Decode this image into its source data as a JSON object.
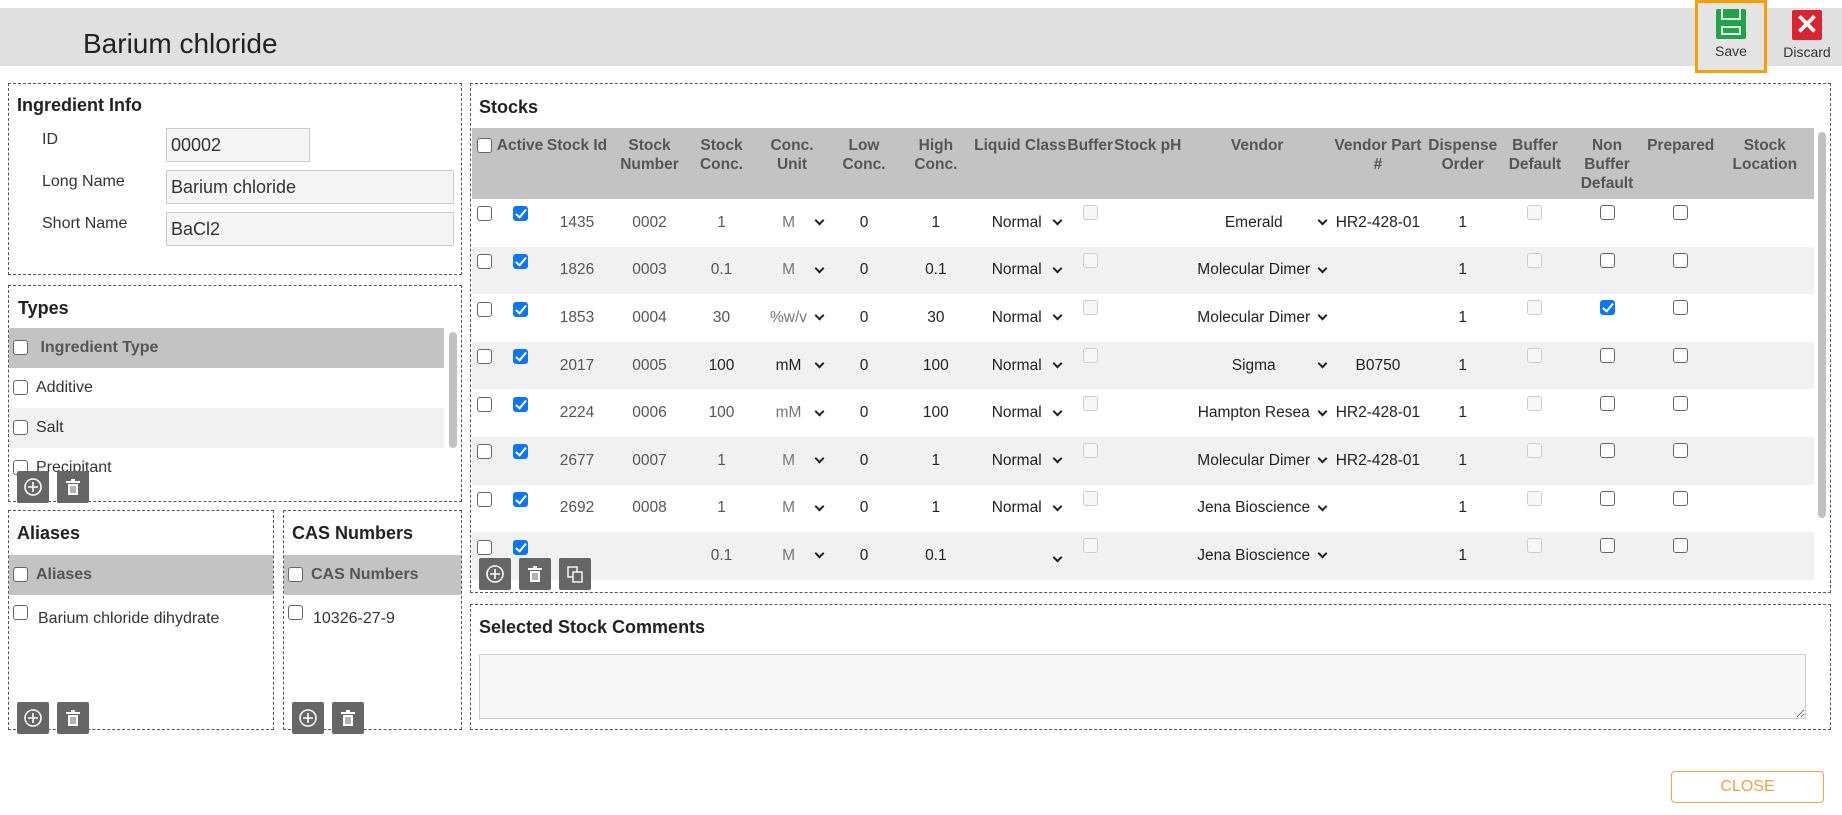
{
  "header": {
    "title": "Barium chloride",
    "save_label": "Save",
    "discard_label": "Discard"
  },
  "ingredient_info": {
    "title": "Ingredient Info",
    "id_label": "ID",
    "id_value": "00002",
    "long_name_label": "Long Name",
    "long_name_value": "Barium chloride",
    "short_name_label": "Short Name",
    "short_name_value": "BaCl2"
  },
  "types": {
    "title": "Types",
    "header": "Ingredient Type",
    "items": [
      "Additive",
      "Salt",
      "Precipitant"
    ]
  },
  "aliases": {
    "title": "Aliases",
    "header": "Aliases",
    "items": [
      "Barium chloride dihydrate"
    ]
  },
  "cas": {
    "title": "CAS Numbers",
    "header": "CAS Numbers",
    "items": [
      "10326-27-9"
    ]
  },
  "stocks": {
    "title": "Stocks",
    "columns": [
      "",
      "Active",
      "Stock Id",
      "Stock Number",
      "Stock Conc.",
      "Conc. Unit",
      "Low Conc.",
      "High Conc.",
      "Liquid Class",
      "Buffer",
      "Stock pH",
      "Vendor",
      "Vendor Part #",
      "Dispense Order",
      "Buffer Default",
      "Non Buffer Default",
      "Prepared",
      "Stock Location"
    ],
    "rows": [
      {
        "active": true,
        "id": "1435",
        "number": "0002",
        "conc": "1",
        "unit": "M",
        "low": "0",
        "high": "1",
        "liquid": "Normal",
        "vendor": "Emerald",
        "part": "HR2-428-01",
        "order": "1",
        "non_buffer_default": false,
        "prepared": false
      },
      {
        "active": true,
        "id": "1826",
        "number": "0003",
        "conc": "0.1",
        "unit": "M",
        "low": "0",
        "high": "0.1",
        "liquid": "Normal",
        "vendor": "Molecular Dimer",
        "part": "",
        "order": "1",
        "non_buffer_default": false,
        "prepared": false
      },
      {
        "active": true,
        "id": "1853",
        "number": "0004",
        "conc": "30",
        "unit": "%w/v",
        "low": "0",
        "high": "30",
        "liquid": "Normal",
        "vendor": "Molecular Dimer",
        "part": "",
        "order": "1",
        "non_buffer_default": true,
        "prepared": false
      },
      {
        "active": true,
        "id": "2017",
        "number": "0005",
        "conc": "100",
        "unit": "mM",
        "low": "0",
        "high": "100",
        "liquid": "Normal",
        "vendor": "Sigma",
        "part": "B0750",
        "order": "1",
        "non_buffer_default": false,
        "prepared": false
      },
      {
        "active": true,
        "id": "2224",
        "number": "0006",
        "conc": "100",
        "unit": "mM",
        "low": "0",
        "high": "100",
        "liquid": "Normal",
        "vendor": "Hampton Resea",
        "part": "HR2-428-01",
        "order": "1",
        "non_buffer_default": false,
        "prepared": false
      },
      {
        "active": true,
        "id": "2677",
        "number": "0007",
        "conc": "1",
        "unit": "M",
        "low": "0",
        "high": "1",
        "liquid": "Normal",
        "vendor": "Molecular Dimer",
        "part": "HR2-428-01",
        "order": "1",
        "non_buffer_default": false,
        "prepared": false
      },
      {
        "active": true,
        "id": "2692",
        "number": "0008",
        "conc": "1",
        "unit": "M",
        "low": "0",
        "high": "1",
        "liquid": "Normal",
        "vendor": "Jena Bioscience",
        "part": "",
        "order": "1",
        "non_buffer_default": false,
        "prepared": false
      },
      {
        "active": true,
        "id": "",
        "number": "",
        "conc": "0.1",
        "unit": "M",
        "low": "0",
        "high": "0.1",
        "liquid": "",
        "vendor": "Jena Bioscience",
        "part": "",
        "order": "1",
        "non_buffer_default": false,
        "prepared": false
      }
    ]
  },
  "comments": {
    "title": "Selected Stock Comments",
    "value": ""
  },
  "footer": {
    "close_label": "CLOSE"
  }
}
